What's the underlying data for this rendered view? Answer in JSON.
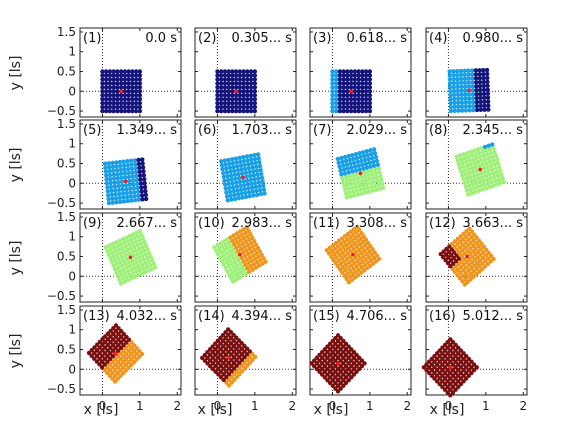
{
  "figure": {
    "xlabel": "x [ls]",
    "ylabel": "y [ls]"
  },
  "chart_data": {
    "type": "scatter",
    "layout": "4x4 small multiples",
    "xlabel": "x [ls]",
    "ylabel": "y [ls]",
    "xlim": [
      -0.6,
      2.1
    ],
    "ylim": [
      -0.65,
      1.6
    ],
    "xticks": [
      0,
      1,
      2
    ],
    "yticks": [
      -0.5,
      0,
      0.5,
      1,
      1.5
    ],
    "ytick_labels": [
      "−0.5",
      "0",
      "0.5",
      "1",
      "1.5"
    ],
    "grid": false,
    "reference_lines": "dotted lines at x = 0 and y = 0",
    "lattice": "11 × 11 points, unit square centered on the center of rotation",
    "colors": {
      "dark_blue": "#14147a",
      "light_blue": "#1aa0e6",
      "light_green": "#9ef078",
      "orange": "#f0961e",
      "dark_red": "#7a1010",
      "center_red": "#ff1a1a",
      "axis": "#222222",
      "reference": "#333333"
    },
    "panels": [
      {
        "index": "(1)",
        "time": "0.0 s",
        "center": [
          0.5,
          0.0
        ],
        "angle_deg": 0
      },
      {
        "index": "(2)",
        "time": "0.305... s",
        "center": [
          0.5,
          0.0
        ],
        "angle_deg": 0
      },
      {
        "index": "(3)",
        "time": "0.618... s",
        "center": [
          0.5,
          0.0
        ],
        "angle_deg": 0
      },
      {
        "index": "(4)",
        "time": "0.980... s",
        "center": [
          0.55,
          0.02
        ],
        "angle_deg": 2
      },
      {
        "index": "(5)",
        "time": "1.349... s",
        "center": [
          0.62,
          0.05
        ],
        "angle_deg": 6
      },
      {
        "index": "(6)",
        "time": "1.703... s",
        "center": [
          0.68,
          0.15
        ],
        "angle_deg": 10
      },
      {
        "index": "(7)",
        "time": "2.029... s",
        "center": [
          0.75,
          0.25
        ],
        "angle_deg": 14
      },
      {
        "index": "(8)",
        "time": "2.345... s",
        "center": [
          0.85,
          0.35
        ],
        "angle_deg": 18
      },
      {
        "index": "(9)",
        "time": "2.667... s",
        "center": [
          0.75,
          0.48
        ],
        "angle_deg": 24
      },
      {
        "index": "(10)",
        "time": "2.983... s",
        "center": [
          0.6,
          0.55
        ],
        "angle_deg": 30
      },
      {
        "index": "(11)",
        "time": "3.308... s",
        "center": [
          0.55,
          0.55
        ],
        "angle_deg": 36
      },
      {
        "index": "(12)",
        "time": "3.663... s",
        "center": [
          0.5,
          0.5
        ],
        "angle_deg": 40
      },
      {
        "index": "(13)",
        "time": "4.032... s",
        "center": [
          0.35,
          0.4
        ],
        "angle_deg": 44
      },
      {
        "index": "(14)",
        "time": "4.394... s",
        "center": [
          0.3,
          0.3
        ],
        "angle_deg": 46
      },
      {
        "index": "(15)",
        "time": "4.706... s",
        "center": [
          0.15,
          0.15
        ],
        "angle_deg": 45
      },
      {
        "index": "(16)",
        "time": "5.012... s",
        "center": [
          0.05,
          0.05
        ],
        "angle_deg": 45
      }
    ]
  }
}
